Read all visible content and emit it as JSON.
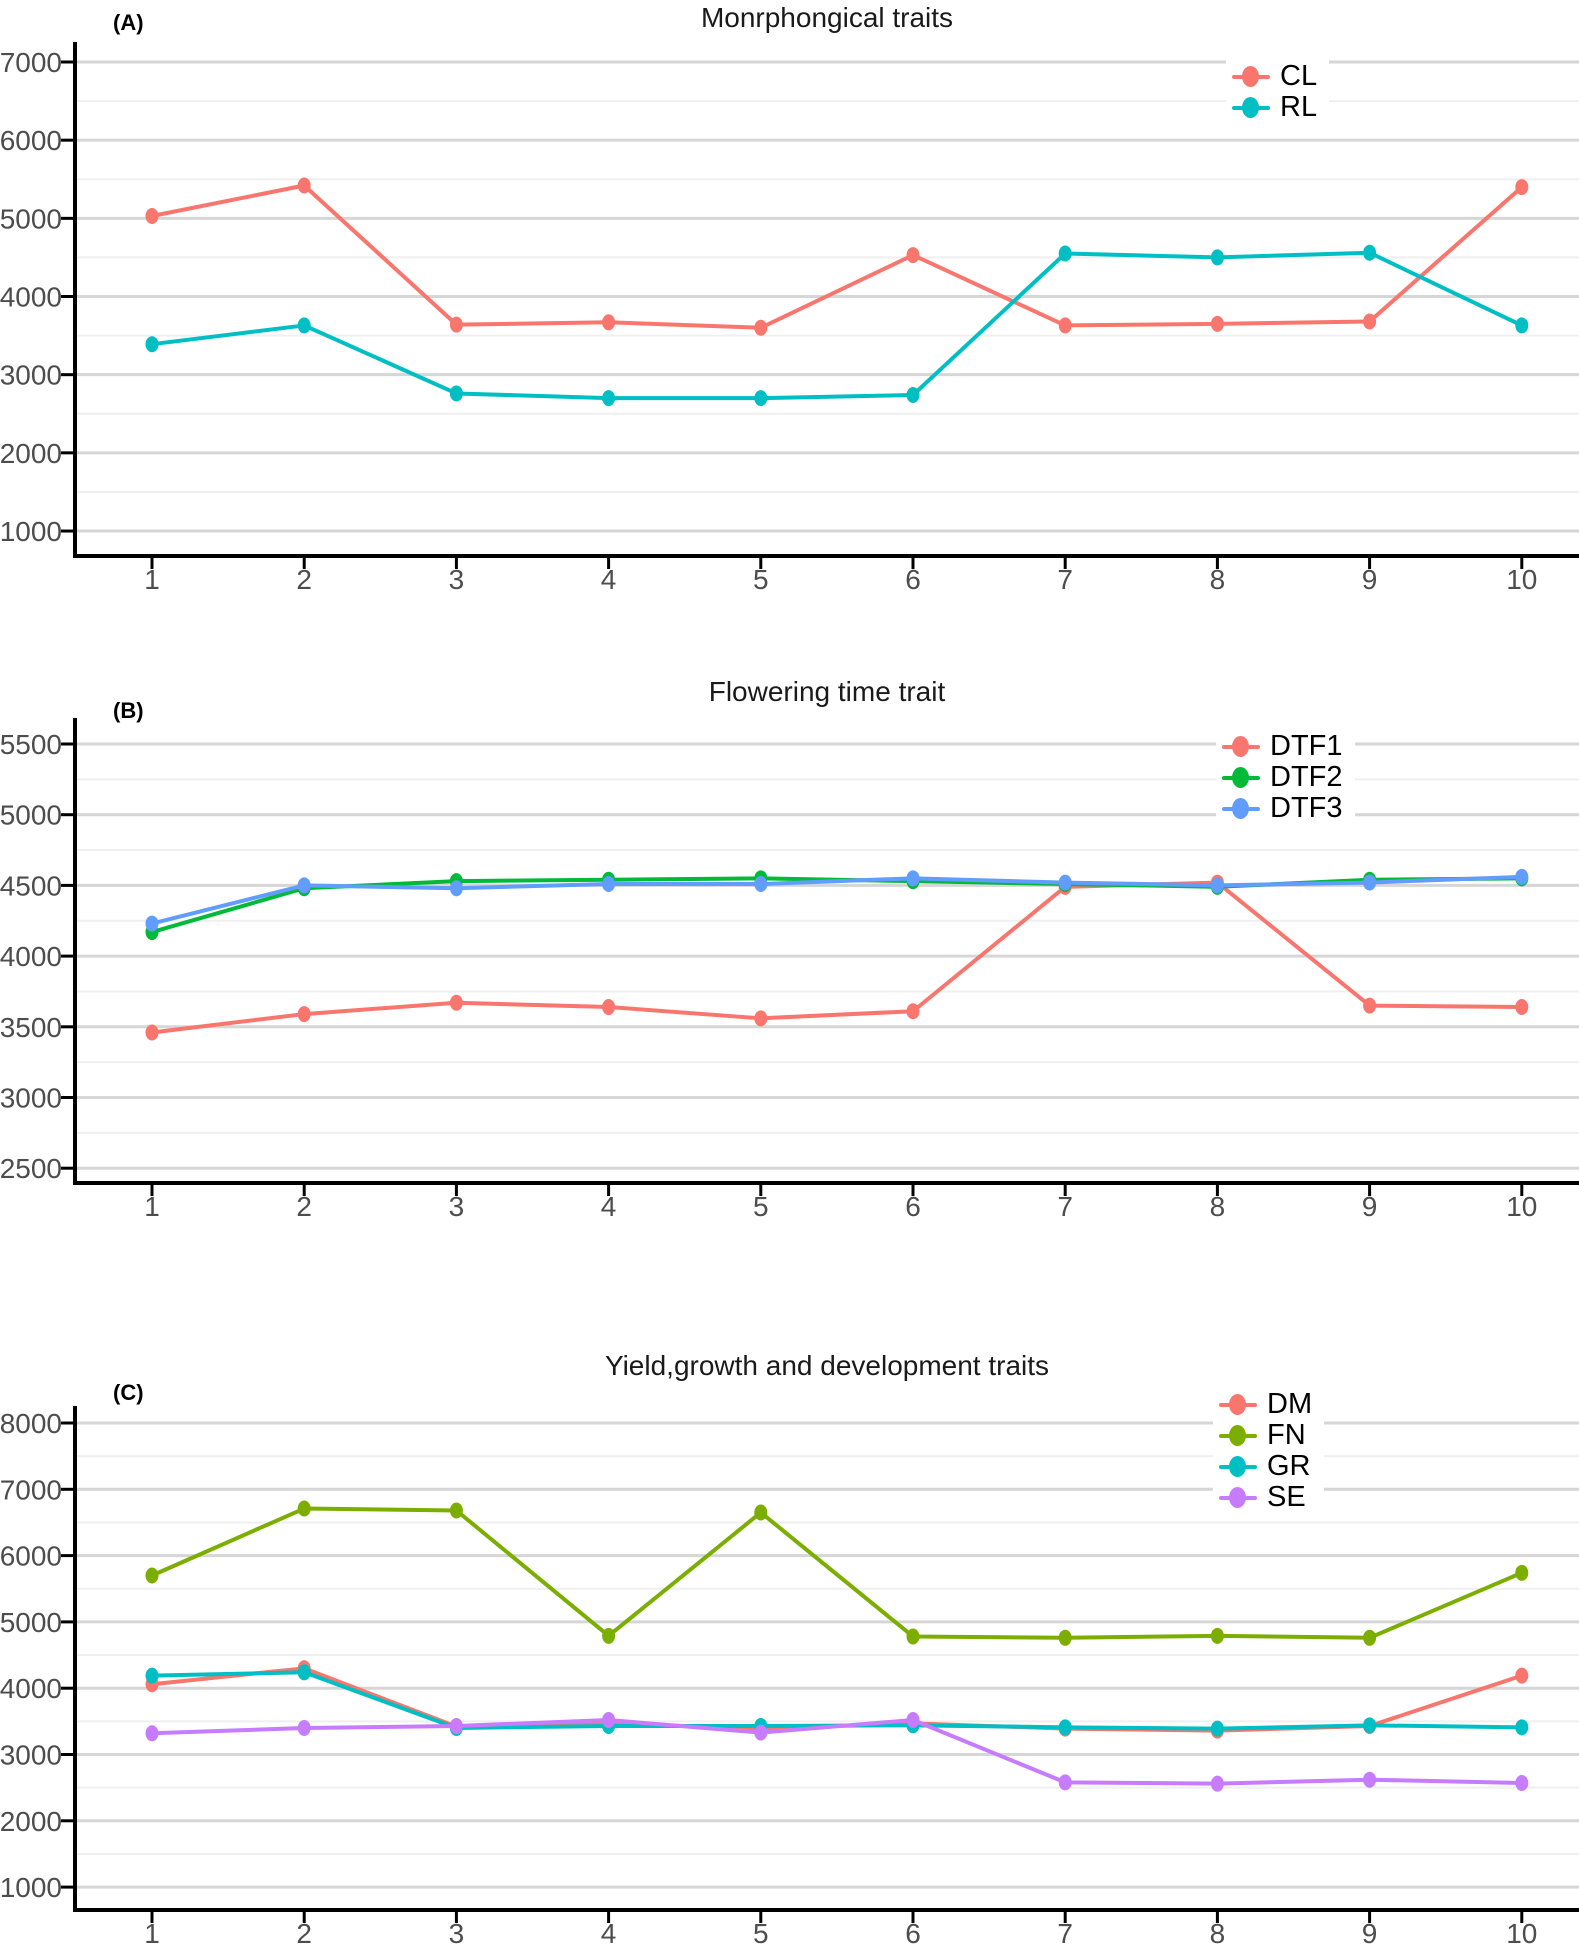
{
  "figure": {
    "background": "#ffffff",
    "style": {
      "grid_major_color": "#d6d6d6",
      "grid_minor_color": "#efefef",
      "axis_color": "#000000",
      "tick_label_color": "#4d4d4d",
      "title_color": "#1a1a1a"
    }
  },
  "chart_data": [
    {
      "type": "line",
      "panel_label": "(A)",
      "title": "Monrphongical traits",
      "x": [
        1,
        2,
        3,
        4,
        5,
        6,
        7,
        8,
        9,
        10
      ],
      "y_ticks": [
        1000,
        2000,
        3000,
        4000,
        5000,
        6000,
        7000
      ],
      "ylim": [
        650,
        7350
      ],
      "grid": true,
      "legend_position": "inside-top-right",
      "series": [
        {
          "name": "CL",
          "color": "#F8766D",
          "values": [
            5030,
            5420,
            3640,
            3670,
            3600,
            4530,
            3630,
            3650,
            3680,
            5400
          ]
        },
        {
          "name": "RL",
          "color": "#00BFC4",
          "values": [
            3390,
            3630,
            2760,
            2700,
            2700,
            2740,
            4550,
            4500,
            4560,
            3630
          ]
        }
      ]
    },
    {
      "type": "line",
      "panel_label": "(B)",
      "title": "Flowering time trait",
      "x": [
        1,
        2,
        3,
        4,
        5,
        6,
        7,
        8,
        9,
        10
      ],
      "y_ticks": [
        2500,
        3000,
        3500,
        4000,
        4500,
        5000,
        5500
      ],
      "ylim": [
        2320,
        5680
      ],
      "grid": true,
      "legend_position": "inside-top-right",
      "series": [
        {
          "name": "DTF1",
          "color": "#F8766D",
          "values": [
            3460,
            3590,
            3670,
            3640,
            3560,
            3610,
            4490,
            4520,
            3650,
            3640
          ]
        },
        {
          "name": "DTF2",
          "color": "#00BA38",
          "values": [
            4170,
            4480,
            4530,
            4540,
            4550,
            4530,
            4510,
            4490,
            4540,
            4550
          ]
        },
        {
          "name": "DTF3",
          "color": "#619CFF",
          "values": [
            4230,
            4500,
            4480,
            4510,
            4510,
            4550,
            4520,
            4500,
            4520,
            4560
          ]
        }
      ]
    },
    {
      "type": "line",
      "panel_label": "(C)",
      "title": "Yield,growth and development traits",
      "x": [
        1,
        2,
        3,
        4,
        5,
        6,
        7,
        8,
        9,
        10
      ],
      "y_ticks": [
        1000,
        2000,
        3000,
        4000,
        5000,
        6000,
        7000,
        8000
      ],
      "ylim": [
        650,
        8350
      ],
      "grid": true,
      "legend_position": "inside-top-right",
      "series": [
        {
          "name": "DM",
          "color": "#F8766D",
          "values": [
            4060,
            4300,
            3420,
            3470,
            3390,
            3470,
            3390,
            3360,
            3430,
            4190
          ]
        },
        {
          "name": "FN",
          "color": "#7CAE00",
          "values": [
            5700,
            6710,
            6680,
            4790,
            6650,
            4780,
            4760,
            4790,
            4760,
            5740
          ]
        },
        {
          "name": "GR",
          "color": "#00BFC4",
          "values": [
            4190,
            4240,
            3400,
            3430,
            3430,
            3440,
            3410,
            3390,
            3440,
            3410
          ]
        },
        {
          "name": "SE",
          "color": "#C77CFF",
          "values": [
            3320,
            3400,
            3430,
            3520,
            3330,
            3520,
            2580,
            2560,
            2620,
            2570
          ]
        }
      ]
    }
  ]
}
